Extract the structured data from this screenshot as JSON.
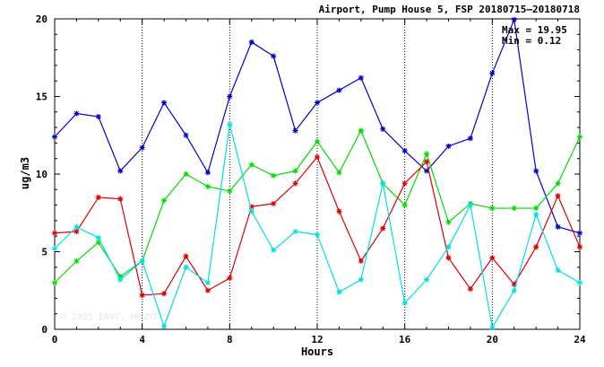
{
  "chart_data": {
    "type": "line",
    "title": "Airport, Pump House 5, FSP 20180715—20180718",
    "xlabel": "Hours",
    "ylabel": "ug/m3",
    "xlim": [
      0,
      24
    ],
    "ylim": [
      0,
      20
    ],
    "xticks": [
      "0",
      "4",
      "8",
      "12",
      "16",
      "20",
      "24"
    ],
    "yticks": [
      "0",
      "5",
      "10",
      "15",
      "20"
    ],
    "grid": "dotted vertical lines every 4 hours",
    "stats": {
      "max": "Max = 19.95",
      "min": "Min =  0.12"
    },
    "watermark": "© 2025  ENVF, HKUST",
    "x": [
      0,
      1,
      2,
      3,
      4,
      5,
      6,
      7,
      8,
      9,
      10,
      11,
      12,
      13,
      14,
      15,
      16,
      17,
      18,
      19,
      20,
      21,
      22,
      23,
      24
    ],
    "series": [
      {
        "color": "#0000cc",
        "values": [
          12.4,
          13.9,
          13.7,
          10.2,
          11.7,
          14.6,
          12.5,
          10.1,
          15.0,
          18.5,
          17.6,
          12.8,
          14.6,
          15.4,
          16.2,
          12.9,
          11.5,
          10.2,
          11.8,
          12.3,
          16.5,
          19.95,
          10.2,
          6.6,
          6.2
        ]
      },
      {
        "color": "#00dd00",
        "values": [
          3.0,
          4.4,
          5.6,
          3.4,
          4.4,
          8.3,
          10.0,
          9.2,
          8.9,
          10.6,
          9.9,
          10.2,
          12.1,
          10.1,
          12.8,
          9.4,
          8.0,
          11.3,
          6.9,
          8.1,
          7.8,
          7.8,
          7.8,
          9.4,
          12.4
        ]
      },
      {
        "color": "#dd0000",
        "values": [
          6.2,
          6.3,
          8.5,
          8.4,
          2.2,
          2.3,
          4.7,
          2.5,
          3.3,
          7.9,
          8.1,
          9.4,
          11.1,
          7.6,
          4.4,
          6.5,
          9.4,
          10.8,
          4.6,
          2.6,
          4.6,
          2.9,
          5.3,
          8.6,
          5.3
        ]
      },
      {
        "color": "#00e0e0",
        "values": [
          5.2,
          6.6,
          5.9,
          3.2,
          4.4,
          0.2,
          4.0,
          3.0,
          13.2,
          7.6,
          5.1,
          6.3,
          6.1,
          2.4,
          3.2,
          9.4,
          1.7,
          3.2,
          5.3,
          8.0,
          0.12,
          2.5,
          7.4,
          3.8,
          3.0
        ]
      }
    ]
  }
}
